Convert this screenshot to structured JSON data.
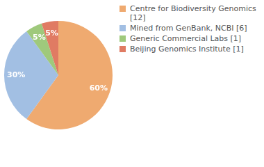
{
  "chart_data": {
    "type": "pie",
    "categories": [
      "Centre for Biodiversity Genomics [12]",
      "Mined from GenBank, NCBI [6]",
      "Generic Commercial Labs [1]",
      "Beijing Genomics Institute [1]"
    ],
    "values": [
      60,
      30,
      5,
      5
    ],
    "value_labels": [
      "60%",
      "30%",
      "5%",
      "5%"
    ],
    "colors": [
      "#efaa70",
      "#a2bfe3",
      "#9fc97c",
      "#e07b63"
    ],
    "data_labels": true,
    "legend": "right"
  }
}
